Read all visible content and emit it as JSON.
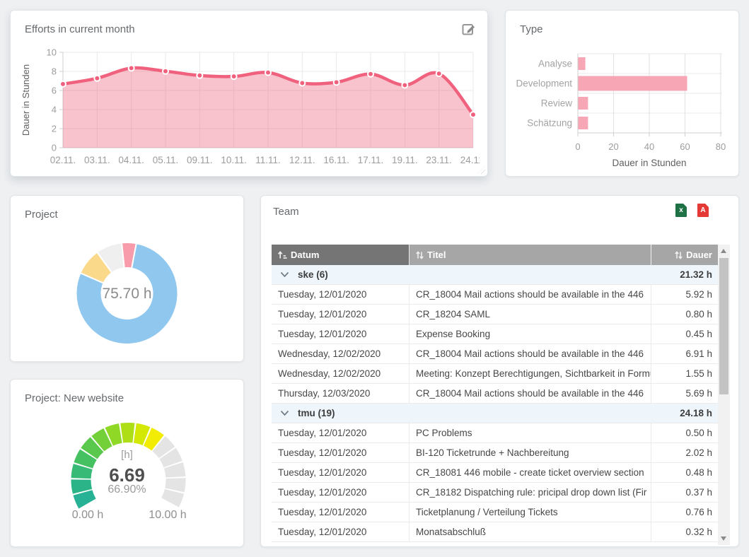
{
  "colors": {
    "page_bg": "#eef0f2",
    "panel_bg": "#ffffff",
    "accent_pink": "#f0617e",
    "bar_pink": "#f7a6b6",
    "grid_line": "#e9e9e9",
    "axis_line": "#cfcfcf",
    "tick_text": "#9c9c9c",
    "axis_label_text": "#5f5f5f",
    "header_dark_gray": "#757575",
    "header_light_gray": "#a6a6a6",
    "group_row_bg": "#eef6fc",
    "excel_green": "#1e7145",
    "pdf_red": "#e53935"
  },
  "icons": {
    "edit": "edit-pencil-icon",
    "excel": "excel-export-icon",
    "pdf": "pdf-export-icon",
    "sort_ascending": "sort-ascending-icon",
    "sort_toggle": "sort-toggle-icon",
    "group_chevron": "chevron-down-icon",
    "scroll_up": "scroll-up-arrow-icon",
    "scroll_down": "scroll-down-arrow-icon"
  },
  "panels": {
    "efforts": {
      "title": "Efforts in current month"
    },
    "type": {
      "title": "Type"
    },
    "project": {
      "title": "Project"
    },
    "gauge": {
      "title": "Project: New website"
    },
    "team": {
      "title": "Team"
    }
  },
  "chart_data": [
    {
      "id": "efforts_by_day",
      "type": "area",
      "title": "Efforts in current month",
      "categories": [
        "02.11.",
        "03.11.",
        "04.11.",
        "05.11.",
        "09.11.",
        "10.11.",
        "11.11.",
        "12.11.",
        "16.11.",
        "17.11.",
        "19.11.",
        "23.11.",
        "24.11."
      ],
      "values": [
        6.68,
        7.28,
        8.34,
        8.02,
        7.57,
        7.47,
        7.88,
        6.78,
        6.86,
        7.72,
        6.56,
        7.77,
        3.47
      ],
      "xlabel": "",
      "ylabel": "Dauer in Stunden",
      "ylim": [
        0,
        10
      ],
      "yticks": [
        0,
        2,
        4,
        6,
        8,
        10
      ],
      "grid": true,
      "line_color": "#f0617e",
      "fill_opacity": 0.38,
      "marker": "circle"
    },
    {
      "id": "hours_by_type",
      "type": "bar",
      "orientation": "horizontal",
      "categories": [
        "Analyse",
        "Development",
        "Review",
        "Schätzung"
      ],
      "values": [
        4,
        61,
        5.5,
        5.5
      ],
      "xlabel": "Dauer in Stunden",
      "xlim": [
        0,
        80
      ],
      "xticks": [
        0,
        20,
        40,
        60,
        80
      ],
      "bar_color": "#f7a6b6",
      "grid": true
    },
    {
      "id": "hours_by_project",
      "type": "pie",
      "donut": true,
      "center_text": "75.70 h",
      "start_angle_deg": -6,
      "slices": [
        {
          "name": "slice-1",
          "value": 3.5,
          "color": "#f89cac"
        },
        {
          "name": "slice-2",
          "value": 59.5,
          "color": "#90c7ef"
        },
        {
          "name": "slice-3",
          "value": 6.4,
          "color": "#fbd98b"
        },
        {
          "name": "slice-4",
          "value": 6.3,
          "color": "#efefef"
        }
      ]
    },
    {
      "id": "project_new_website_gauge",
      "type": "gauge",
      "min": 0,
      "max": 10,
      "value": 6.69,
      "percent": 66.9,
      "segments_total": 15,
      "segments_filled": 10,
      "filled_colors": [
        "#27b195",
        "#2bb487",
        "#36ba76",
        "#46c162",
        "#5ac84d",
        "#73d038",
        "#90d826",
        "#aedf16",
        "#d4e806",
        "#f2eb04"
      ],
      "empty_color": "#e4e4e4",
      "display": {
        "unit": "[h]",
        "value": "6.69",
        "percent": "66.90%",
        "min": "0.00 h",
        "max": "10.00 h"
      }
    }
  ],
  "team_table": {
    "columns": [
      {
        "label": "Datum",
        "sort": "asc"
      },
      {
        "label": "Titel",
        "sort": "none"
      },
      {
        "label": "Dauer",
        "sort": "none"
      }
    ],
    "groups": [
      {
        "name": "ske (6)",
        "total": "21.32 h",
        "rows": [
          [
            "Tuesday, 12/01/2020",
            "CR_18004 Mail actions should be available in the 446",
            "5.92 h"
          ],
          [
            "Tuesday, 12/01/2020",
            "CR_18204 SAML",
            "0.80 h"
          ],
          [
            "Tuesday, 12/01/2020",
            "Expense Booking",
            "0.45 h"
          ],
          [
            "Wednesday, 12/02/2020",
            "CR_18004 Mail actions should be available in the 446",
            "6.91 h"
          ],
          [
            "Wednesday, 12/02/2020",
            "Meeting: Konzept Berechtigungen, Sichtbarkeit in Formularen",
            "1.55 h"
          ],
          [
            "Thursday, 12/03/2020",
            "CR_18004 Mail actions should be available in the 446",
            "5.69 h"
          ]
        ]
      },
      {
        "name": "tmu (19)",
        "total": "24.18 h",
        "rows": [
          [
            "Tuesday, 12/01/2020",
            "PC Problems",
            "0.50 h"
          ],
          [
            "Tuesday, 12/01/2020",
            "BI-120 Ticketrunde + Nachbereitung",
            "2.02 h"
          ],
          [
            "Tuesday, 12/01/2020",
            "CR_18081 446 mobile - create ticket overview section",
            "0.48 h"
          ],
          [
            "Tuesday, 12/01/2020",
            "CR_18182 Dispatching rule: pricipal drop down list (Fir",
            "0.37 h"
          ],
          [
            "Tuesday, 12/01/2020",
            "Ticketplanung / Verteilung Tickets",
            "0.76 h"
          ],
          [
            "Tuesday, 12/01/2020",
            "Monatsabschluß",
            "0.32 h"
          ]
        ]
      }
    ]
  }
}
